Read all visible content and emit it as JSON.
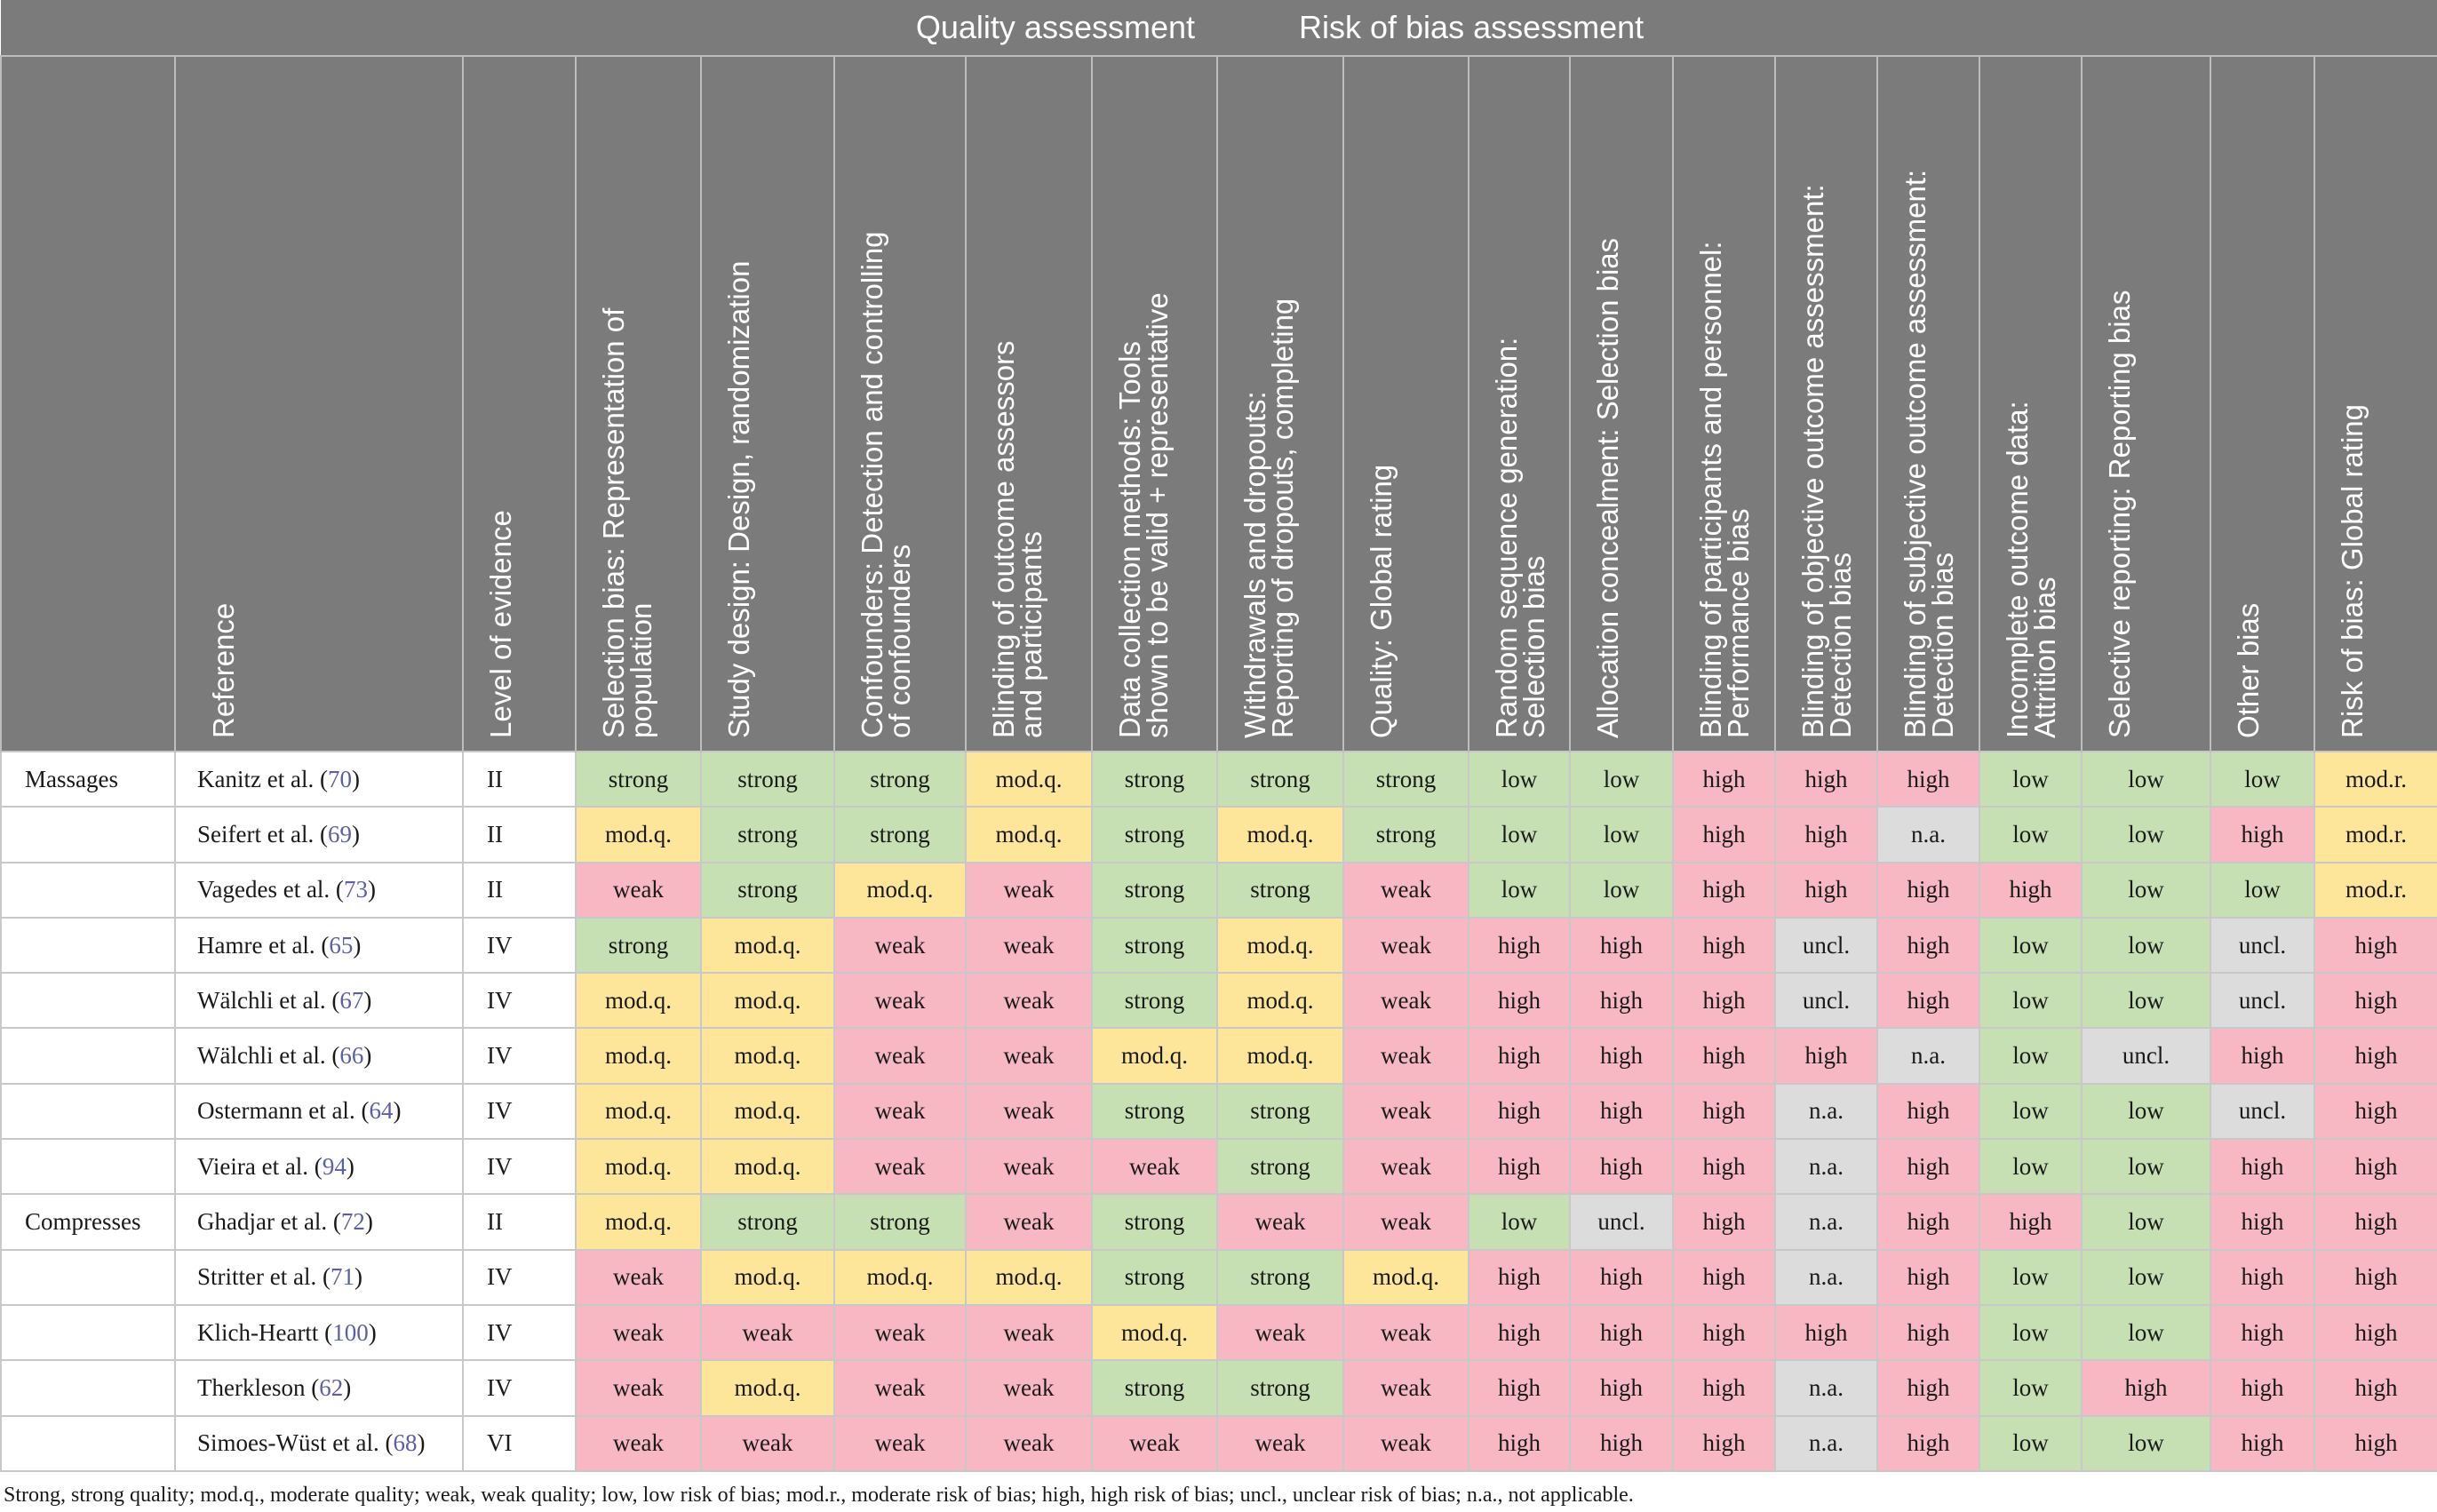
{
  "header": {
    "quality_assessment": "Quality assessment",
    "risk_of_bias_assessment": "Risk of bias assessment"
  },
  "columns": [
    [
      "Reference"
    ],
    [
      "Level of evidence"
    ],
    [
      "Selection bias: Representation of",
      "population"
    ],
    [
      "Study design: Design, randomization"
    ],
    [
      "Confounders: Detection and controlling",
      "of confounders"
    ],
    [
      "Blinding of outcome assessors",
      "and participants"
    ],
    [
      "Data collection methods: Tools",
      "shown to be valid + representative"
    ],
    [
      "Withdrawals and dropouts:",
      "Reporting of dropouts, completing"
    ],
    [
      "Quality: Global rating"
    ],
    [
      "Random sequence generation:",
      "Selection bias"
    ],
    [
      "Allocation concealment: Selection bias"
    ],
    [
      "Blinding of participants and personnel:",
      "Performance bias"
    ],
    [
      "Blinding of objective outcome assessment:",
      "Detection bias"
    ],
    [
      "Blinding of subjective outcome assessment:",
      "Detection bias"
    ],
    [
      "Incomplete outcome data:",
      "Attrition bias"
    ],
    [
      "Selective reporting: Reporting bias"
    ],
    [
      "Other bias"
    ],
    [
      "Risk of bias: Global rating"
    ]
  ],
  "rows": [
    {
      "category": "Massages",
      "ref": "Kanitz et al. (",
      "num": "70",
      "close": ")",
      "level": "II",
      "vals": [
        "strong",
        "strong",
        "strong",
        "mod.q.",
        "strong",
        "strong",
        "strong",
        "low",
        "low",
        "high",
        "high",
        "high",
        "low",
        "low",
        "low",
        "mod.r."
      ]
    },
    {
      "category": "",
      "ref": "Seifert et al. (",
      "num": "69",
      "close": ")",
      "level": "II",
      "vals": [
        "mod.q.",
        "strong",
        "strong",
        "mod.q.",
        "strong",
        "mod.q.",
        "strong",
        "low",
        "low",
        "high",
        "high",
        "n.a.",
        "low",
        "low",
        "high",
        "mod.r."
      ]
    },
    {
      "category": "",
      "ref": "Vagedes et al. (",
      "num": "73",
      "close": ")",
      "level": "II",
      "vals": [
        "weak",
        "strong",
        "mod.q.",
        "weak",
        "strong",
        "strong",
        "weak",
        "low",
        "low",
        "high",
        "high",
        "high",
        "high",
        "low",
        "low",
        "mod.r."
      ]
    },
    {
      "category": "",
      "ref": "Hamre et al. (",
      "num": "65",
      "close": ")",
      "level": "IV",
      "vals": [
        "strong",
        "mod.q.",
        "weak",
        "weak",
        "strong",
        "mod.q.",
        "weak",
        "high",
        "high",
        "high",
        "uncl.",
        "high",
        "low",
        "low",
        "uncl.",
        "high"
      ]
    },
    {
      "category": "",
      "ref": "Wälchli et al. (",
      "num": "67",
      "close": ")",
      "level": "IV",
      "vals": [
        "mod.q.",
        "mod.q.",
        "weak",
        "weak",
        "strong",
        "mod.q.",
        "weak",
        "high",
        "high",
        "high",
        "uncl.",
        "high",
        "low",
        "low",
        "uncl.",
        "high"
      ]
    },
    {
      "category": "",
      "ref": "Wälchli et al. (",
      "num": "66",
      "close": ")",
      "level": "IV",
      "vals": [
        "mod.q.",
        "mod.q.",
        "weak",
        "weak",
        "mod.q.",
        "mod.q.",
        "weak",
        "high",
        "high",
        "high",
        "high",
        "n.a.",
        "low",
        "uncl.",
        "high",
        "high"
      ]
    },
    {
      "category": "",
      "ref": "Ostermann et al. (",
      "num": "64",
      "close": ")",
      "level": "IV",
      "vals": [
        "mod.q.",
        "mod.q.",
        "weak",
        "weak",
        "strong",
        "strong",
        "weak",
        "high",
        "high",
        "high",
        "n.a.",
        "high",
        "low",
        "low",
        "uncl.",
        "high"
      ]
    },
    {
      "category": "",
      "ref": "Vieira et al. (",
      "num": "94",
      "close": ")",
      "level": "IV",
      "vals": [
        "mod.q.",
        "mod.q.",
        "weak",
        "weak",
        "weak",
        "strong",
        "weak",
        "high",
        "high",
        "high",
        "n.a.",
        "high",
        "low",
        "low",
        "high",
        "high"
      ]
    },
    {
      "category": "Compresses",
      "ref": "Ghadjar et al. (",
      "num": "72",
      "close": ")",
      "level": "II",
      "vals": [
        "mod.q.",
        "strong",
        "strong",
        "weak",
        "strong",
        "weak",
        "weak",
        "low",
        "uncl.",
        "high",
        "n.a.",
        "high",
        "high",
        "low",
        "high",
        "high"
      ]
    },
    {
      "category": "",
      "ref": "Stritter et al. (",
      "num": "71",
      "close": ")",
      "level": "IV",
      "vals": [
        "weak",
        "mod.q.",
        "mod.q.",
        "mod.q.",
        "strong",
        "strong",
        "mod.q.",
        "high",
        "high",
        "high",
        "n.a.",
        "high",
        "low",
        "low",
        "high",
        "high"
      ]
    },
    {
      "category": "",
      "ref": "Klich-Heartt (",
      "num": "100",
      "close": ")",
      "level": "IV",
      "vals": [
        "weak",
        "weak",
        "weak",
        "weak",
        "mod.q.",
        "weak",
        "weak",
        "high",
        "high",
        "high",
        "high",
        "high",
        "low",
        "low",
        "high",
        "high"
      ]
    },
    {
      "category": "",
      "ref": "Therkleson (",
      "num": "62",
      "close": ")",
      "level": "IV",
      "vals": [
        "weak",
        "mod.q.",
        "weak",
        "weak",
        "strong",
        "strong",
        "weak",
        "high",
        "high",
        "high",
        "n.a.",
        "high",
        "low",
        "high",
        "high",
        "high"
      ]
    },
    {
      "category": "",
      "ref": "Simoes-Wüst et al. (",
      "num": "68",
      "close": ")",
      "level": "VI",
      "vals": [
        "weak",
        "weak",
        "weak",
        "weak",
        "weak",
        "weak",
        "weak",
        "high",
        "high",
        "high",
        "n.a.",
        "high",
        "low",
        "low",
        "high",
        "high"
      ]
    }
  ],
  "footnote": "Strong, strong quality; mod.q., moderate quality; weak, weak quality; low, low risk of bias; mod.r., moderate risk of bias; high, high risk of bias; uncl., unclear risk of bias; n.a., not applicable.",
  "colors": {
    "header_bg": "#7b7b7b",
    "good": "#c6e0b4",
    "moderate": "#fde59a",
    "bad": "#f7b7c3",
    "unclear": "#dcdcdc"
  }
}
